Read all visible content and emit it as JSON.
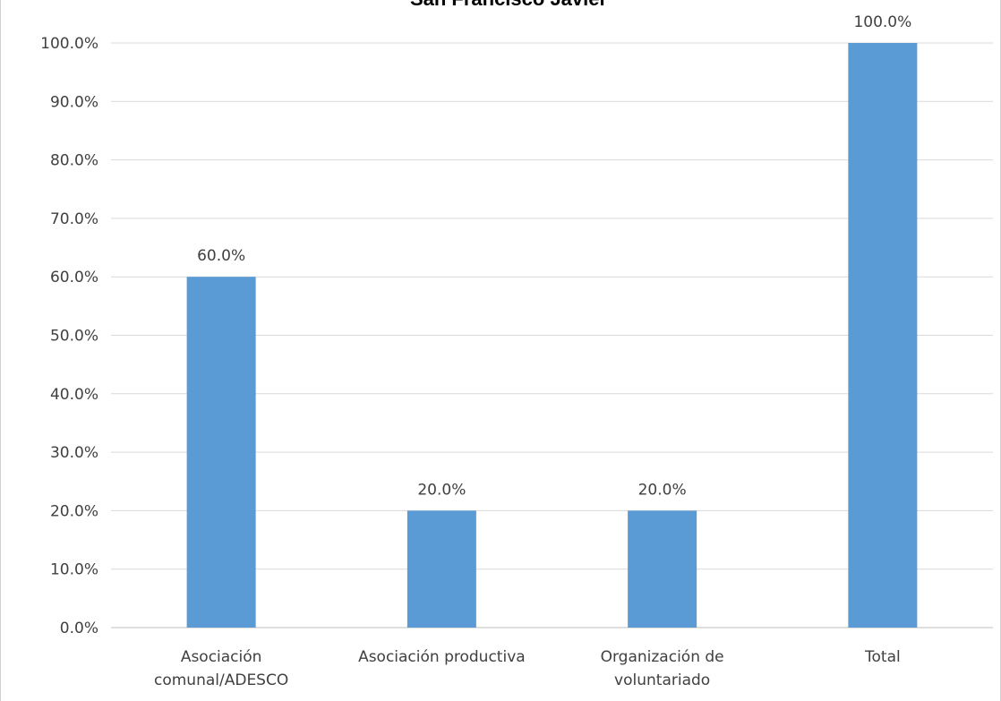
{
  "chart_data": {
    "type": "bar",
    "title": "San Francisco Javier",
    "xlabel": "",
    "ylabel": "",
    "categories": [
      [
        "Asociación",
        "comunal/ADESCO"
      ],
      [
        "Asociación productiva"
      ],
      [
        "Organización de",
        "voluntariado"
      ],
      [
        "Total"
      ]
    ],
    "values": [
      60.0,
      20.0,
      20.0,
      100.0
    ],
    "value_labels": [
      "60.0%",
      "20.0%",
      "20.0%",
      "100.0%"
    ],
    "y_ticks": [
      "0.0%",
      "10.0%",
      "20.0%",
      "30.0%",
      "40.0%",
      "50.0%",
      "60.0%",
      "70.0%",
      "80.0%",
      "90.0%",
      "100.0%"
    ],
    "ylim": [
      0,
      100
    ],
    "grid": true,
    "legend": "none",
    "colors": {
      "bar": "#5b9bd5",
      "grid": "#d9d9d9",
      "axis": "#bfbfbf"
    }
  }
}
